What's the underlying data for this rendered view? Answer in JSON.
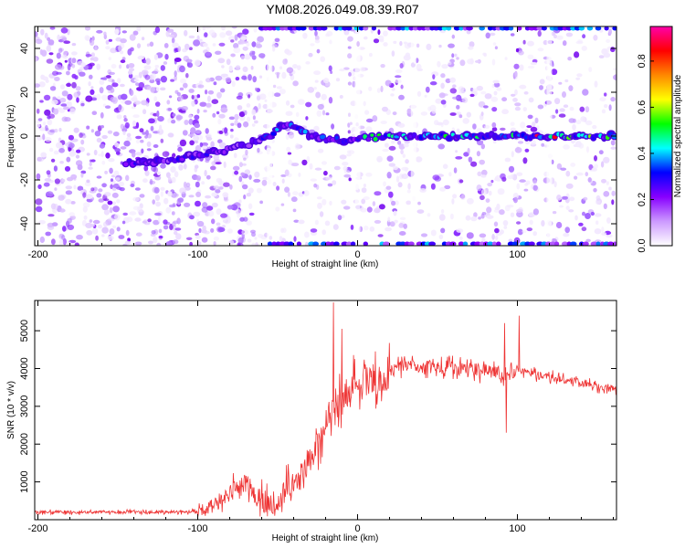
{
  "title": "YM08.2026.049.08.39.R07",
  "colors": {
    "signal": "#ee3333",
    "frame": "#000000"
  },
  "chart_data": [
    {
      "type": "heatmap",
      "xlabel": "Height of straight line (km)",
      "ylabel": "Frequency (Hz)",
      "xlim": [
        -202,
        162
      ],
      "ylim": [
        -50,
        50
      ],
      "x_ticks": [
        -200,
        -100,
        0,
        100
      ],
      "y_ticks": [
        -40,
        -20,
        0,
        20,
        40
      ],
      "colorbar": {
        "label": "Normalized spectral amplitude",
        "range": [
          0,
          0.95
        ],
        "ticks": [
          0,
          0.2,
          0.4,
          0.6,
          0.8
        ],
        "colormap": [
          "#ffffff",
          "#cc99ff",
          "#8800ff",
          "#0000ff",
          "#00ffff",
          "#00ff00",
          "#ffff00",
          "#ff8800",
          "#ff0000",
          "#ff00aa"
        ]
      },
      "ridge": {
        "x": [
          -145,
          -130,
          -110,
          -95,
          -80,
          -70,
          -60,
          -55,
          -50,
          -45,
          -40,
          -30,
          -20,
          -10,
          0,
          20,
          50,
          100,
          160
        ],
        "y": [
          -12,
          -12,
          -10,
          -8,
          -6,
          -4,
          -2,
          0,
          3,
          6,
          5,
          0,
          -1,
          -2,
          -1,
          0,
          0,
          0,
          0
        ]
      },
      "band_edges_hz": [
        -50,
        50
      ]
    },
    {
      "type": "line",
      "xlabel": "Height of straight line (km)",
      "ylabel": "SNR (10 * v/v)",
      "xlim": [
        -202,
        162
      ],
      "ylim": [
        0,
        5800
      ],
      "x_ticks": [
        -200,
        -100,
        0,
        100
      ],
      "y_ticks": [
        1000,
        2000,
        3000,
        4000,
        5000
      ],
      "series": [
        {
          "x": [
            -202,
            -120,
            -100,
            -90,
            -80,
            -70,
            -60,
            -50,
            -45,
            -40,
            -30,
            -20,
            -15,
            -10,
            0,
            10,
            20,
            30,
            40,
            60,
            80,
            90,
            95,
            100,
            110,
            130,
            150,
            162
          ],
          "y": [
            200,
            200,
            220,
            350,
            700,
            950,
            500,
            300,
            800,
            1000,
            1500,
            2500,
            3000,
            3200,
            3600,
            3700,
            3900,
            4100,
            4050,
            4000,
            3950,
            3900,
            3800,
            4000,
            3850,
            3700,
            3550,
            3450
          ]
        }
      ],
      "spikes": [
        {
          "x": -15,
          "y": 5750
        },
        {
          "x": -10,
          "y": 5050
        },
        {
          "x": 92,
          "y": 5200
        },
        {
          "x": 101,
          "y": 5400
        },
        {
          "x": 93,
          "y": 2300
        }
      ]
    }
  ]
}
